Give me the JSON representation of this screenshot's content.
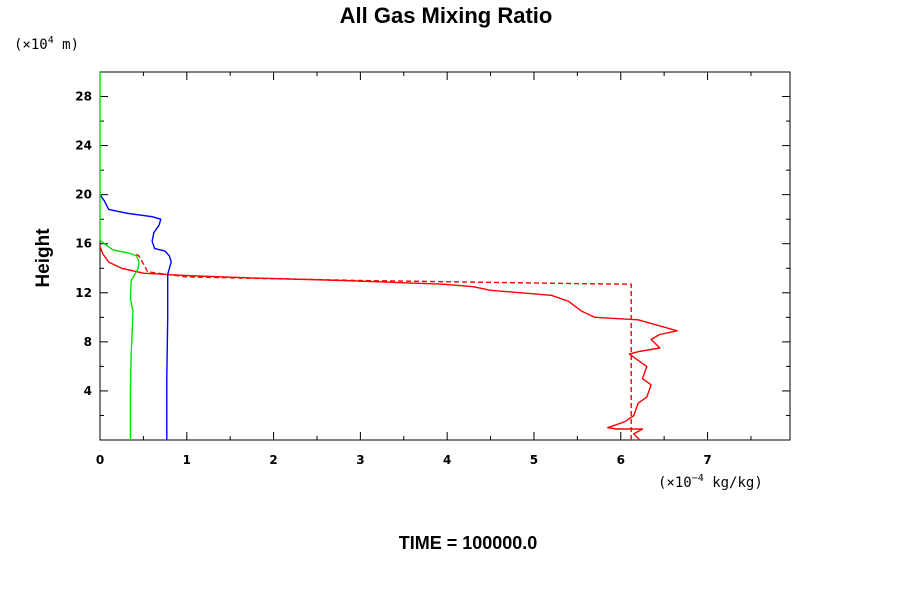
{
  "chart_data": {
    "type": "line",
    "title": "All Gas Mixing Ratio",
    "ylabel": "Height",
    "y_unit_prefix": "(×10",
    "y_unit_exp": "4",
    "y_unit_suffix": " m)",
    "x_unit_prefix": "(×10",
    "x_unit_exp": "−4",
    "x_unit_suffix": " kg/kg)",
    "footer": "TIME = 100000.0",
    "xlim": [
      0,
      7.95
    ],
    "ylim": [
      0,
      30
    ],
    "x_ticks": [
      "0",
      "1",
      "2",
      "3",
      "4",
      "5",
      "6",
      "7"
    ],
    "y_ticks": [
      "4",
      "8",
      "12",
      "16",
      "20",
      "24",
      "28"
    ],
    "grid": false,
    "series": [
      {
        "color": "#ff0000",
        "style": "solid",
        "points": [
          [
            6.22,
            0
          ],
          [
            6.15,
            0.5
          ],
          [
            6.25,
            0.9
          ],
          [
            5.95,
            0.9
          ],
          [
            5.85,
            1.0
          ],
          [
            6.05,
            1.5
          ],
          [
            6.15,
            2.0
          ],
          [
            6.2,
            3.0
          ],
          [
            6.3,
            3.5
          ],
          [
            6.35,
            4.5
          ],
          [
            6.25,
            5.0
          ],
          [
            6.3,
            6.0
          ],
          [
            6.2,
            6.5
          ],
          [
            6.1,
            7.0
          ],
          [
            6.2,
            7.2
          ],
          [
            6.45,
            7.5
          ],
          [
            6.35,
            8.2
          ],
          [
            6.45,
            8.6
          ],
          [
            6.65,
            8.9
          ],
          [
            6.4,
            9.4
          ],
          [
            6.2,
            9.8
          ],
          [
            5.7,
            10.0
          ],
          [
            5.55,
            10.5
          ],
          [
            5.4,
            11.3
          ],
          [
            5.2,
            11.8
          ],
          [
            4.5,
            12.2
          ],
          [
            4.3,
            12.5
          ],
          [
            3.95,
            12.7
          ],
          [
            2.8,
            13.0
          ],
          [
            1.8,
            13.2
          ],
          [
            1.0,
            13.4
          ],
          [
            0.5,
            13.6
          ],
          [
            0.25,
            14.0
          ],
          [
            0.1,
            14.5
          ],
          [
            0.03,
            15.2
          ],
          [
            0,
            15.8
          ]
        ]
      },
      {
        "color": "#ff0000",
        "style": "dashed",
        "points": [
          [
            6.12,
            0
          ],
          [
            6.12,
            12.7
          ],
          [
            5.5,
            12.75
          ],
          [
            3.0,
            13.0
          ],
          [
            1.0,
            13.3
          ],
          [
            0.55,
            13.7
          ],
          [
            0.45,
            15.0
          ],
          [
            0.4,
            15.2
          ]
        ]
      },
      {
        "color": "#0000ff",
        "style": "solid",
        "points": [
          [
            0.77,
            0
          ],
          [
            0.77,
            5.0
          ],
          [
            0.78,
            10.0
          ],
          [
            0.78,
            13.5
          ],
          [
            0.8,
            14.0
          ],
          [
            0.82,
            14.5
          ],
          [
            0.8,
            15.0
          ],
          [
            0.75,
            15.4
          ],
          [
            0.63,
            15.6
          ],
          [
            0.6,
            16.2
          ],
          [
            0.62,
            16.9
          ],
          [
            0.68,
            17.5
          ],
          [
            0.7,
            18.0
          ],
          [
            0.6,
            18.2
          ],
          [
            0.3,
            18.5
          ],
          [
            0.1,
            18.8
          ],
          [
            0.05,
            19.5
          ],
          [
            0,
            20.0
          ]
        ]
      },
      {
        "color": "#00e000",
        "style": "solid",
        "points": [
          [
            0.35,
            0
          ],
          [
            0.35,
            4.0
          ],
          [
            0.36,
            7.0
          ],
          [
            0.38,
            10.5
          ],
          [
            0.35,
            11.5
          ],
          [
            0.36,
            13.0
          ],
          [
            0.4,
            13.5
          ],
          [
            0.44,
            14.0
          ],
          [
            0.45,
            14.5
          ],
          [
            0.42,
            15.0
          ],
          [
            0.35,
            15.2
          ],
          [
            0.15,
            15.5
          ],
          [
            0.05,
            16.0
          ],
          [
            0,
            16.3
          ],
          [
            0,
            30
          ]
        ]
      }
    ]
  }
}
